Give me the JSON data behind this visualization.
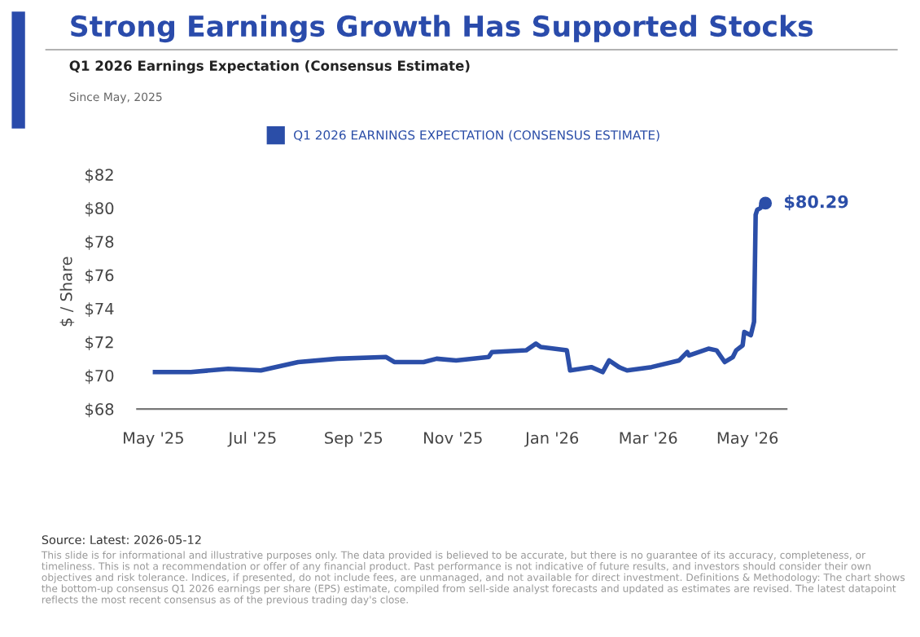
{
  "chart_data": {
    "type": "line",
    "title": "Strong Earnings Growth Has Supported Stocks",
    "subtitle": "Q1 2026 Earnings Expectation (Consensus Estimate)",
    "ylabel": "$ / Share",
    "annotations": [
      "Since May, 2025",
      {
        "text": "$80.29",
        "x": "2026-05-12",
        "y": 80.29
      },
      "Source: Latest: 2026-05-12",
      "This slide is for informational and illustrative purposes only. The data provided is believed to be accurate, but there is no guarantee of its accuracy, completeness, or timeliness. This is not a recommendation or offer of any financial product. Past performance is not indicative of future results, and investors should consider their own objectives and risk tolerance. Indices, if presented, do not include fees, are unmanaged, and not available for direct investment. Definitions & Methodology: The chart shows the bottom-up consensus Q1 2026 earnings per share (EPS) estimate, compiled from sell-side analyst forecasts and updated as estimates are revised. The latest datapoint reflects the most recent consensus as of the previous trading day's close."
    ],
    "series": [
      {
        "name": "Q1 2026 EARNINGS EXPECTATION (CONSENSUS ESTIMATE)",
        "color": "#2b4ea8",
        "x": [
          "2025-05-02",
          "2025-05-24",
          "2025-06-16",
          "2025-07-06",
          "2025-07-29",
          "2025-08-22",
          "2025-09-21",
          "2025-09-26",
          "2025-10-14",
          "2025-10-22",
          "2025-11-03",
          "2025-11-23",
          "2025-11-25",
          "2025-12-16",
          "2025-12-22",
          "2025-12-25",
          "2026-01-10",
          "2026-01-12",
          "2026-01-25",
          "2026-02-01",
          "2026-02-05",
          "2026-02-11",
          "2026-02-16",
          "2026-03-03",
          "2026-03-20",
          "2026-03-25",
          "2026-03-26",
          "2026-04-07",
          "2026-04-12",
          "2026-04-17",
          "2026-04-22",
          "2026-04-24",
          "2026-04-28",
          "2026-04-29",
          "2026-05-03",
          "2026-05-05",
          "2026-05-06",
          "2026-05-07",
          "2026-05-09",
          "2026-05-10",
          "2026-05-12"
        ],
        "values": [
          70.2,
          70.2,
          70.4,
          70.3,
          70.8,
          71.0,
          71.1,
          70.8,
          70.8,
          71.0,
          70.9,
          71.1,
          71.4,
          71.5,
          71.9,
          71.7,
          71.5,
          70.3,
          70.5,
          70.2,
          70.9,
          70.5,
          70.3,
          70.5,
          70.9,
          71.4,
          71.2,
          71.6,
          71.5,
          70.8,
          71.1,
          71.5,
          71.8,
          72.6,
          72.4,
          73.2,
          79.6,
          79.9,
          80.0,
          80.4,
          80.29
        ]
      },
      {
        "color": "#2b4ea8",
        "type": "scatter",
        "marker": "circle",
        "x": [
          "2026-05-12"
        ],
        "values": [
          80.29
        ]
      }
    ],
    "xlim": [
      "2025-04-21",
      "2026-05-25"
    ],
    "xticks": [
      {
        "value": "2025-05-01",
        "label": "May '25"
      },
      {
        "value": "2025-07-01",
        "label": "Jul '25"
      },
      {
        "value": "2025-09-01",
        "label": "Sep '25"
      },
      {
        "value": "2025-11-01",
        "label": "Nov '25"
      },
      {
        "value": "2026-01-01",
        "label": "Jan '26"
      },
      {
        "value": "2026-03-01",
        "label": "Mar '26"
      },
      {
        "value": "2026-05-01",
        "label": "May '26"
      }
    ],
    "ylim": [
      68,
      82
    ],
    "yticks": [
      {
        "value": 68,
        "label": "$68"
      },
      {
        "value": 70,
        "label": "$70"
      },
      {
        "value": 72,
        "label": "$72"
      },
      {
        "value": 74,
        "label": "$74"
      },
      {
        "value": 76,
        "label": "$76"
      },
      {
        "value": 78,
        "label": "$78"
      },
      {
        "value": 80,
        "label": "$80"
      },
      {
        "value": 82,
        "label": "$82"
      }
    ],
    "grid": false,
    "legend": "top",
    "line_style": "solid"
  }
}
